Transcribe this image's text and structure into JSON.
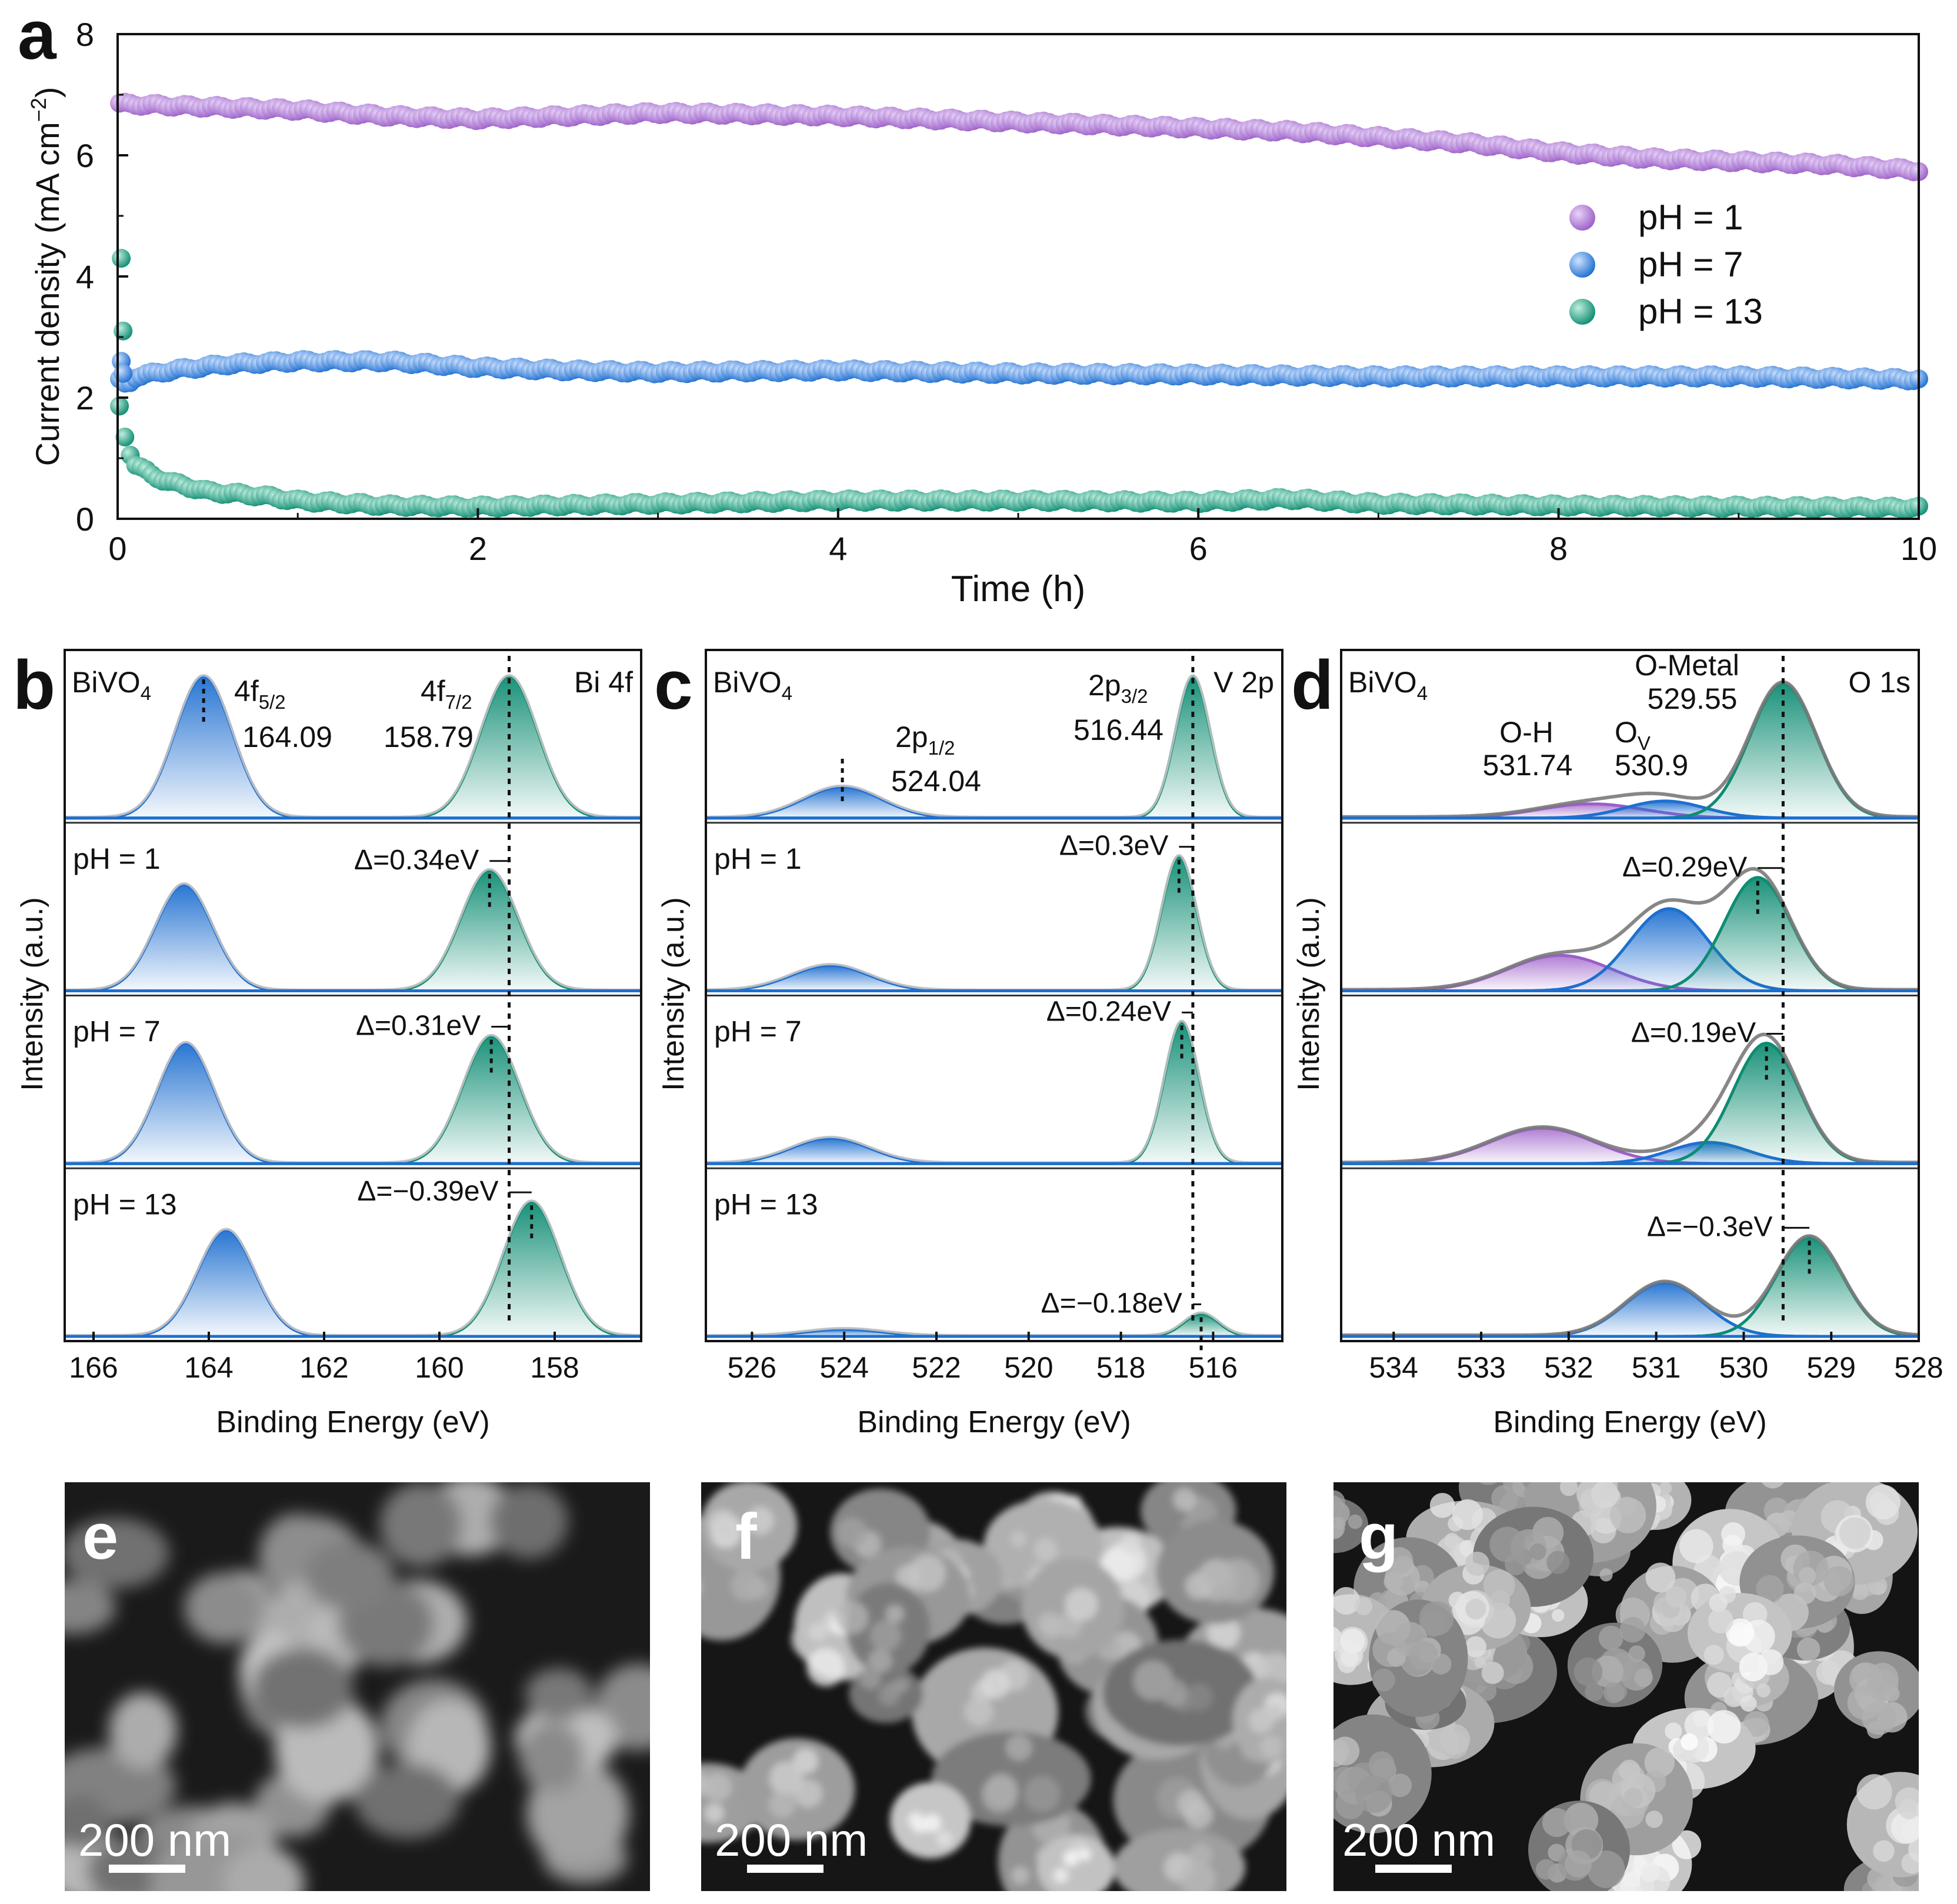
{
  "panels": {
    "a": {
      "letter": "a"
    },
    "b": {
      "letter": "b",
      "sample": "BiVO",
      "sample_sub": "4",
      "core": "Bi 4f",
      "xlabel": "Binding Energy (eV)",
      "ylabel": "Intensity (a.u.)",
      "peak_labels": [
        {
          "main": "4f",
          "sub": "5/2",
          "value": "164.09"
        },
        {
          "main": "4f",
          "sub": "7/2",
          "value": "158.79"
        }
      ],
      "rows": [
        "",
        "pH = 1",
        "pH = 7",
        "pH = 13"
      ],
      "shifts": [
        "Δ=0.34eV",
        "Δ=0.31eV",
        "Δ=−0.39eV"
      ]
    },
    "c": {
      "letter": "c",
      "sample": "BiVO",
      "sample_sub": "4",
      "core": "V 2p",
      "xlabel": "Binding Energy (eV)",
      "ylabel": "Intensity (a.u.)",
      "peak_labels": [
        {
          "main": "2p",
          "sub": "1/2",
          "value": "524.04"
        },
        {
          "main": "2p",
          "sub": "3/2",
          "value": "516.44"
        }
      ],
      "rows": [
        "",
        "pH = 1",
        "pH = 7",
        "pH = 13"
      ],
      "shifts": [
        "Δ=0.3eV",
        "Δ=0.24eV",
        "Δ=−0.18eV"
      ]
    },
    "d": {
      "letter": "d",
      "sample": "BiVO",
      "sample_sub": "4",
      "core": "O 1s",
      "xlabel": "Binding Energy (eV)",
      "ylabel": "Intensity (a.u.)",
      "peak_labels": [
        {
          "main": "O-H",
          "sub": "",
          "value": "531.74"
        },
        {
          "main": "O",
          "sub": "V",
          "value": "530.9"
        },
        {
          "main": "O-Metal",
          "sub": "",
          "value": "529.55"
        }
      ],
      "rows": [
        "",
        "",
        "",
        ""
      ],
      "shifts": [
        "Δ=0.29eV",
        "Δ=0.19eV",
        "Δ=−0.3eV"
      ]
    },
    "e": {
      "letter": "e",
      "scale": "200 nm"
    },
    "f": {
      "letter": "f",
      "scale": "200 nm"
    },
    "g": {
      "letter": "g",
      "scale": "200 nm"
    }
  },
  "colors": {
    "purple": "#9B5FC8",
    "blue": "#1E6FD0",
    "green": "#0E8C72",
    "gray": "#8a8a8a"
  },
  "chart_data": [
    {
      "type": "scatter",
      "panel": "a",
      "title": "",
      "xlabel": "Time (h)",
      "ylabel_main": "Current density (mA cm",
      "ylabel_sup": "−2",
      "ylabel_end": ")",
      "xlim": [
        0,
        10
      ],
      "ylim": [
        0,
        8
      ],
      "xticks": [
        0,
        2,
        4,
        6,
        8,
        10
      ],
      "yticks": [
        0,
        2,
        4,
        6,
        8
      ],
      "legend_position": "right",
      "series": [
        {
          "name": "pH = 1",
          "color": "#9B5FC8",
          "x": [
            0,
            0.5,
            1,
            1.5,
            2,
            2.5,
            3,
            3.5,
            4,
            4.5,
            5,
            5.5,
            6,
            6.5,
            7,
            7.5,
            8,
            8.5,
            9,
            9.5,
            10
          ],
          "y": [
            6.85,
            6.8,
            6.75,
            6.65,
            6.6,
            6.65,
            6.7,
            6.68,
            6.65,
            6.6,
            6.55,
            6.5,
            6.45,
            6.4,
            6.3,
            6.2,
            6.05,
            5.95,
            5.9,
            5.85,
            5.75
          ]
        },
        {
          "name": "pH = 7",
          "color": "#1E6FD0",
          "x": [
            0,
            0.05,
            0.1,
            0.3,
            0.6,
            1,
            1.5,
            2,
            2.5,
            3,
            4,
            5,
            6,
            7,
            8,
            9,
            10
          ],
          "y": [
            2.3,
            2.2,
            2.35,
            2.45,
            2.55,
            2.6,
            2.6,
            2.5,
            2.45,
            2.42,
            2.45,
            2.4,
            2.38,
            2.35,
            2.35,
            2.35,
            2.3
          ],
          "initial_points": [
            [
              0.02,
              2.6
            ],
            [
              0.03,
              2.4
            ]
          ]
        },
        {
          "name": "pH = 13",
          "color": "#0E8C72",
          "x": [
            0,
            0.05,
            0.1,
            0.2,
            0.3,
            0.5,
            0.8,
            1,
            1.5,
            2,
            3,
            4,
            5,
            6,
            6.5,
            7,
            8,
            9,
            10
          ],
          "y": [
            2.0,
            1.2,
            0.9,
            0.7,
            0.6,
            0.45,
            0.38,
            0.3,
            0.22,
            0.2,
            0.25,
            0.3,
            0.3,
            0.28,
            0.33,
            0.25,
            0.22,
            0.2,
            0.18
          ],
          "initial_points": [
            [
              0.02,
              4.3
            ],
            [
              0.03,
              3.1
            ]
          ]
        }
      ]
    },
    {
      "type": "line",
      "panel": "b",
      "xlim": [
        166.5,
        156.5
      ],
      "xticks": [
        166,
        164,
        162,
        160,
        158
      ],
      "reference_line_x": 158.79,
      "reference_fwhm_line_x": 164.09,
      "rows": [
        {
          "label": "",
          "peaks": [
            {
              "center": 164.09,
              "height": 1.0,
              "color": "blue"
            },
            {
              "center": 158.79,
              "height": 1.0,
              "color": "green"
            }
          ]
        },
        {
          "label": "pH = 1",
          "peaks": [
            {
              "center": 164.43,
              "height": 0.75,
              "color": "blue"
            },
            {
              "center": 159.13,
              "height": 0.85,
              "color": "green"
            }
          ]
        },
        {
          "label": "pH = 7",
          "peaks": [
            {
              "center": 164.4,
              "height": 0.85,
              "color": "blue"
            },
            {
              "center": 159.1,
              "height": 0.9,
              "color": "green"
            }
          ]
        },
        {
          "label": "pH = 13",
          "peaks": [
            {
              "center": 163.7,
              "height": 0.75,
              "color": "blue"
            },
            {
              "center": 158.4,
              "height": 0.95,
              "color": "green"
            }
          ]
        }
      ]
    },
    {
      "type": "line",
      "panel": "c",
      "xlim": [
        527,
        514.5
      ],
      "xticks": [
        526,
        524,
        522,
        520,
        518,
        516
      ],
      "reference_line_x": 516.44,
      "rows": [
        {
          "label": "",
          "peaks": [
            {
              "center": 524.04,
              "height": 0.22,
              "color": "blue"
            },
            {
              "center": 516.44,
              "height": 1.0,
              "color": "green"
            }
          ]
        },
        {
          "label": "pH = 1",
          "peaks": [
            {
              "center": 524.3,
              "height": 0.18,
              "color": "blue"
            },
            {
              "center": 516.74,
              "height": 0.95,
              "color": "green"
            }
          ]
        },
        {
          "label": "pH = 7",
          "peaks": [
            {
              "center": 524.3,
              "height": 0.18,
              "color": "blue"
            },
            {
              "center": 516.68,
              "height": 1.0,
              "color": "green"
            }
          ]
        },
        {
          "label": "pH = 13",
          "peaks": [
            {
              "center": 524.0,
              "height": 0.05,
              "color": "blue"
            },
            {
              "center": 516.26,
              "height": 0.16,
              "color": "green"
            }
          ]
        }
      ]
    },
    {
      "type": "line",
      "panel": "d",
      "xlim": [
        534.6,
        528
      ],
      "xticks": [
        534,
        533,
        532,
        531,
        530,
        529,
        528
      ],
      "reference_line_x": 529.55,
      "rows": [
        {
          "label": "",
          "peaks": [
            {
              "center": 531.74,
              "height": 0.1,
              "color": "purple"
            },
            {
              "center": 530.9,
              "height": 0.12,
              "color": "blue"
            },
            {
              "center": 529.55,
              "height": 0.95,
              "color": "green"
            }
          ]
        },
        {
          "label": "",
          "peaks": [
            {
              "center": 532.1,
              "height": 0.25,
              "color": "purple"
            },
            {
              "center": 530.85,
              "height": 0.58,
              "color": "blue"
            },
            {
              "center": 529.84,
              "height": 0.8,
              "color": "green"
            }
          ]
        },
        {
          "label": "",
          "peaks": [
            {
              "center": 532.3,
              "height": 0.25,
              "color": "purple"
            },
            {
              "center": 530.4,
              "height": 0.15,
              "color": "blue"
            },
            {
              "center": 529.74,
              "height": 0.85,
              "color": "green"
            }
          ]
        },
        {
          "label": "",
          "peaks": [
            {
              "center": 530.9,
              "height": 0.38,
              "color": "blue"
            },
            {
              "center": 529.25,
              "height": 0.7,
              "color": "green"
            }
          ]
        }
      ]
    }
  ]
}
